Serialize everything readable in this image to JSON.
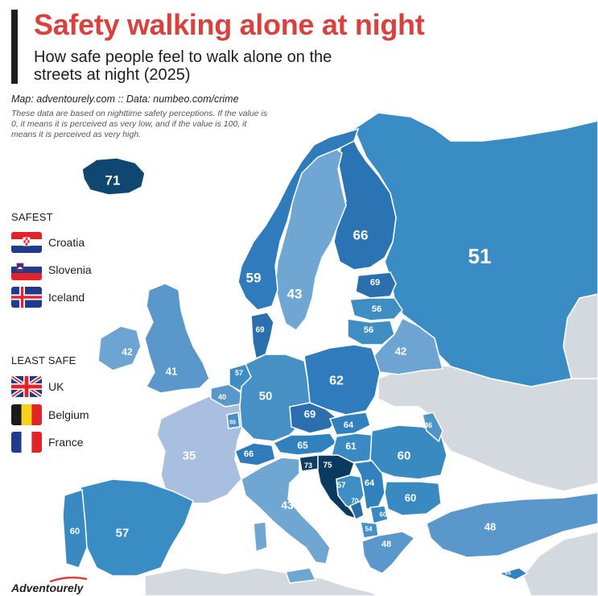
{
  "title": "Safety walking alone at night",
  "subtitle": "How safe people feel to walk alone on the streets at night (2025)",
  "source": "Map: adventourely.com :: Data: numbeo.com/crime",
  "note": "These data are based on nighttime safety perceptions. If the value is 0, it means it is perceived as very low, and if the value is 100, it means it is perceived as very high.",
  "legend": {
    "safest_heading": "SAFEST",
    "safest": [
      {
        "label": "Croatia",
        "flag": "flag-croatia-icon"
      },
      {
        "label": "Slovenia",
        "flag": "flag-slovenia-icon"
      },
      {
        "label": "Iceland",
        "flag": "flag-iceland-icon"
      }
    ],
    "least_safe_heading": "LEAST SAFE",
    "least_safe": [
      {
        "label": "UK",
        "flag": "flag-uk-icon"
      },
      {
        "label": "Belgium",
        "flag": "flag-belgium-icon"
      },
      {
        "label": "France",
        "flag": "flag-france-icon"
      }
    ]
  },
  "logo": "Adventourely",
  "colors": {
    "title_red": "#d9413e",
    "sea": "#ffffff",
    "no_data": "#d3d9de",
    "scale_low": "#a9bfe0",
    "scale_mid": "#3e8ec4",
    "scale_high": "#0c3e66"
  },
  "map_values": [
    {
      "country": "Iceland",
      "value": 71
    },
    {
      "country": "Norway",
      "value": 59
    },
    {
      "country": "Sweden",
      "value": 43
    },
    {
      "country": "Finland",
      "value": 66
    },
    {
      "country": "Russia",
      "value": 51
    },
    {
      "country": "Estonia",
      "value": 69
    },
    {
      "country": "Latvia",
      "value": 56
    },
    {
      "country": "Lithuania",
      "value": 56
    },
    {
      "country": "Belarus",
      "value": 42
    },
    {
      "country": "Denmark",
      "value": 69
    },
    {
      "country": "Ireland",
      "value": 42
    },
    {
      "country": "United Kingdom",
      "value": 41
    },
    {
      "country": "Netherlands",
      "value": 57
    },
    {
      "country": "Belgium",
      "value": 40
    },
    {
      "country": "Luxembourg",
      "value": 55
    },
    {
      "country": "Germany",
      "value": 50
    },
    {
      "country": "Poland",
      "value": 62
    },
    {
      "country": "Czechia",
      "value": 69
    },
    {
      "country": "Slovakia",
      "value": 64
    },
    {
      "country": "Austria",
      "value": 65
    },
    {
      "country": "Hungary",
      "value": 61
    },
    {
      "country": "Moldova",
      "value": 46
    },
    {
      "country": "Romania",
      "value": 60
    },
    {
      "country": "Switzerland",
      "value": 66
    },
    {
      "country": "France",
      "value": 35
    },
    {
      "country": "Slovenia",
      "value": 73
    },
    {
      "country": "Croatia",
      "value": 75
    },
    {
      "country": "Bosnia and Herzegovina",
      "value": 57
    },
    {
      "country": "Serbia",
      "value": 64
    },
    {
      "country": "Montenegro",
      "value": 70
    },
    {
      "country": "Kosovo",
      "value": 60
    },
    {
      "country": "Bulgaria",
      "value": 60
    },
    {
      "country": "North Macedonia",
      "value": 54
    },
    {
      "country": "Italy",
      "value": 43
    },
    {
      "country": "Greece",
      "value": 48
    },
    {
      "country": "Turkey",
      "value": 48
    },
    {
      "country": "Spain",
      "value": 57
    },
    {
      "country": "Portugal",
      "value": 60
    },
    {
      "country": "Cyprus",
      "value": 65
    }
  ]
}
